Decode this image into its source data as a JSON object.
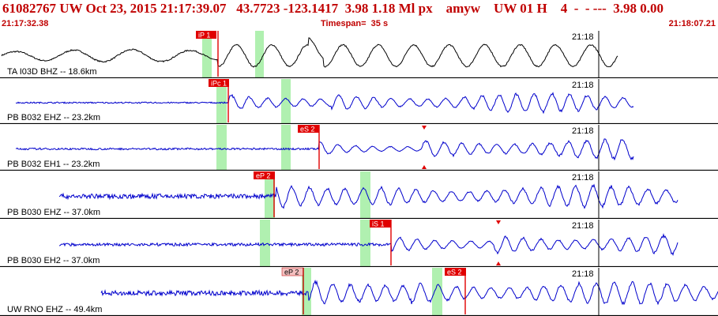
{
  "header": {
    "title": "61082767 UW Oct 23, 2015 21:17:39.07   43.7723 -123.1417  3.98 1.18 Ml px    amyw    UW 01 H    4  -  - ---  3.98 0.00",
    "start_time": "21:17:32.38",
    "timespan": "Timespan=  35 s",
    "end_time": "21:18:07.21"
  },
  "colors": {
    "header_text": "#c00000",
    "trace_first": "#000000",
    "trace": "#0000cc",
    "pick_flag": "#e00000",
    "pick_flag_light": "#f4c0c0",
    "marker": "#e00000",
    "window": "#b0f0b0",
    "panel_border": "#000000"
  },
  "panels": [
    {
      "label": "TA I03D BHZ -- 18.6km",
      "time_mark": "21:18",
      "trace": "black",
      "picks": [
        "iP 1"
      ]
    },
    {
      "label": "PB B032 EHZ -- 23.2km",
      "time_mark": "21:18",
      "trace": "blue",
      "picks": [
        "iPc 1"
      ]
    },
    {
      "label": "PB B032 EH1 -- 23.2km",
      "time_mark": "21:18",
      "trace": "blue",
      "picks": [
        "eS 2"
      ],
      "markers": true
    },
    {
      "label": "PB B030 EHZ -- 37.0km",
      "time_mark": "21:18",
      "trace": "blue",
      "picks": [
        "eP 2"
      ]
    },
    {
      "label": "PB B030 EH2 -- 37.0km",
      "time_mark": "21:18",
      "trace": "blue",
      "picks": [
        "iS 1"
      ],
      "markers": true
    },
    {
      "label": "UW RNO EHZ -- 49.4km",
      "time_mark": "21:18",
      "trace": "blue",
      "picks": [
        "eP 2",
        "eS 2"
      ]
    }
  ]
}
